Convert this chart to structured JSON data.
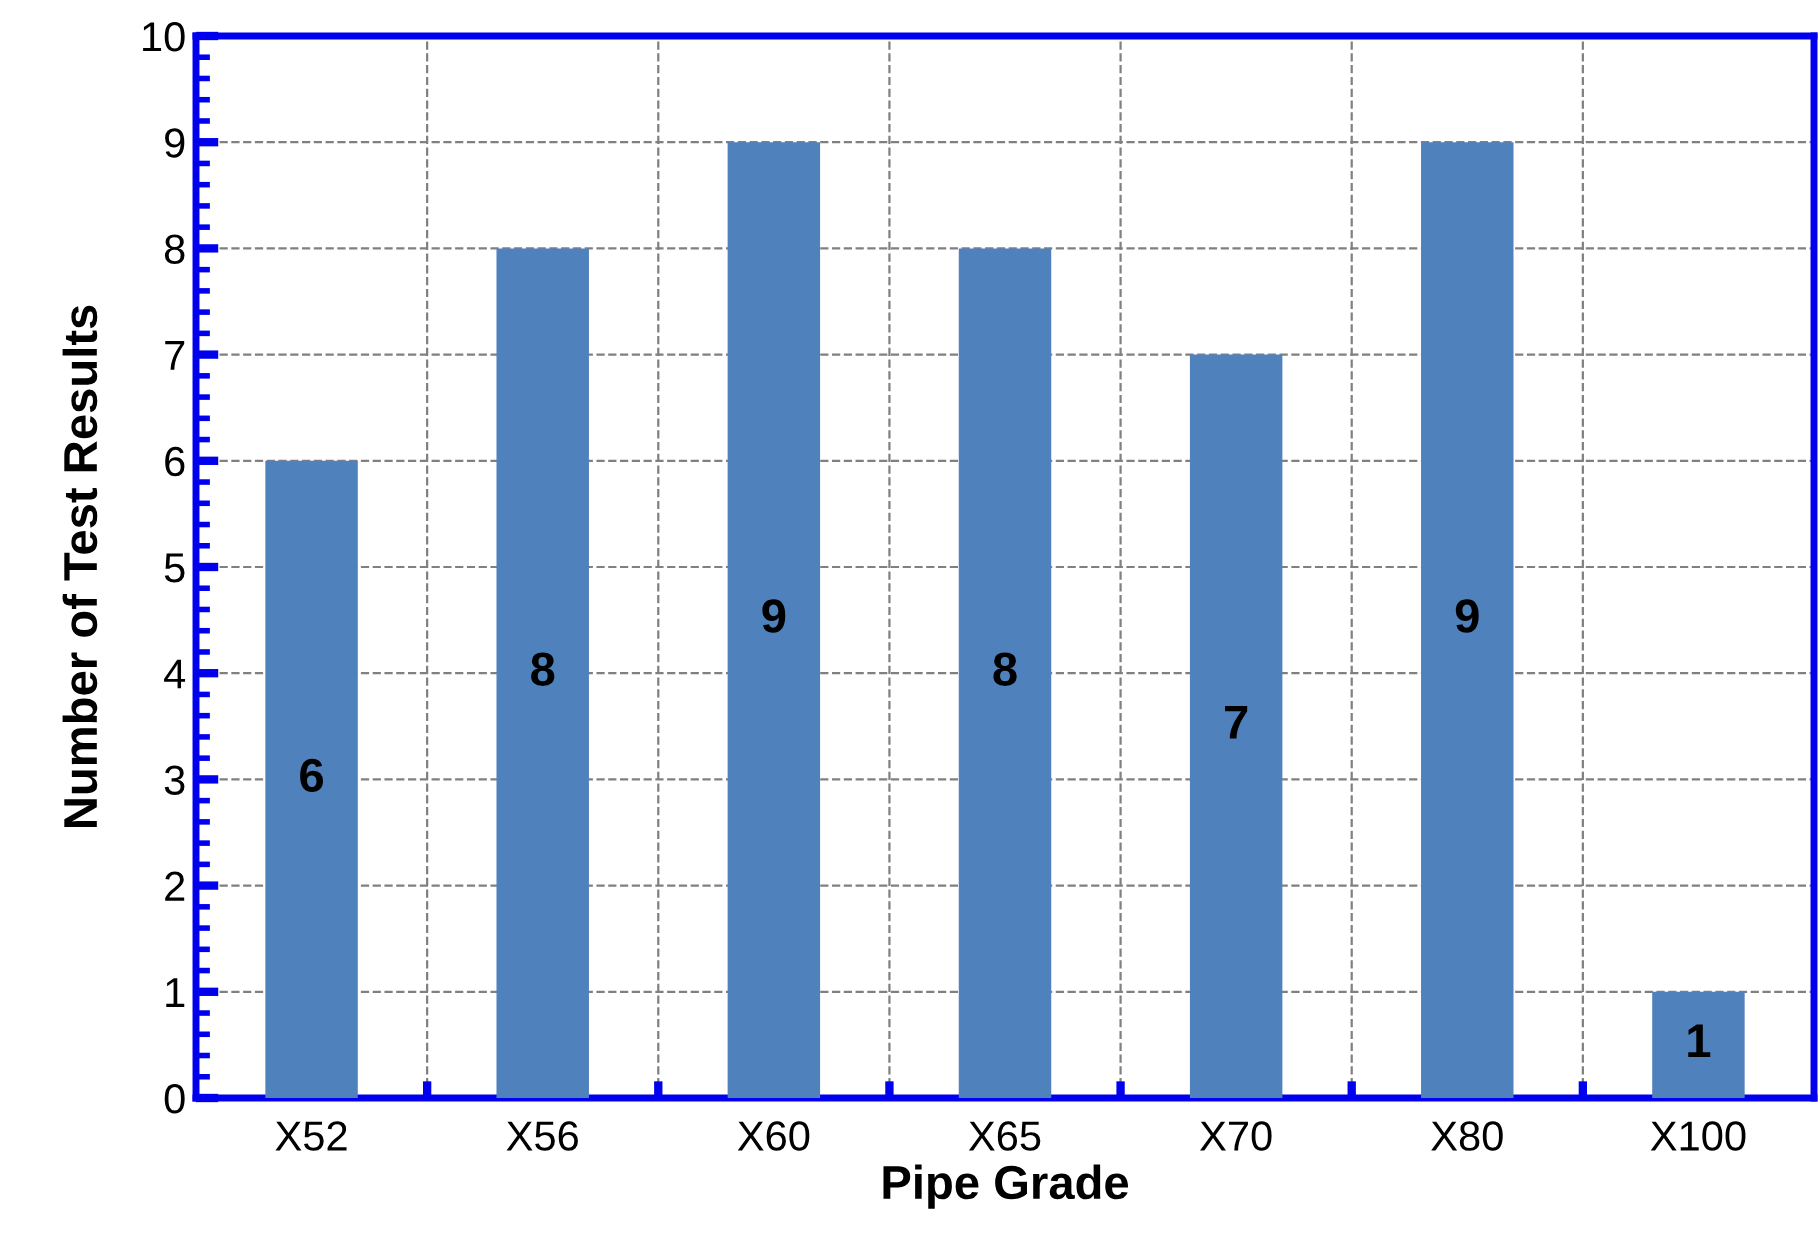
{
  "chart_data": {
    "type": "bar",
    "xlabel": "Pipe Grade",
    "ylabel": "Number of Test Results",
    "categories": [
      "X52",
      "X56",
      "X60",
      "X65",
      "X70",
      "X80",
      "X100"
    ],
    "values": [
      6,
      8,
      9,
      8,
      7,
      9,
      1
    ],
    "color": "#4f81bd",
    "ylim": [
      0,
      10
    ],
    "yticks": [
      0,
      1,
      2,
      3,
      4,
      5,
      6,
      7,
      8,
      9,
      10
    ],
    "grid": true,
    "data_labels": true
  }
}
